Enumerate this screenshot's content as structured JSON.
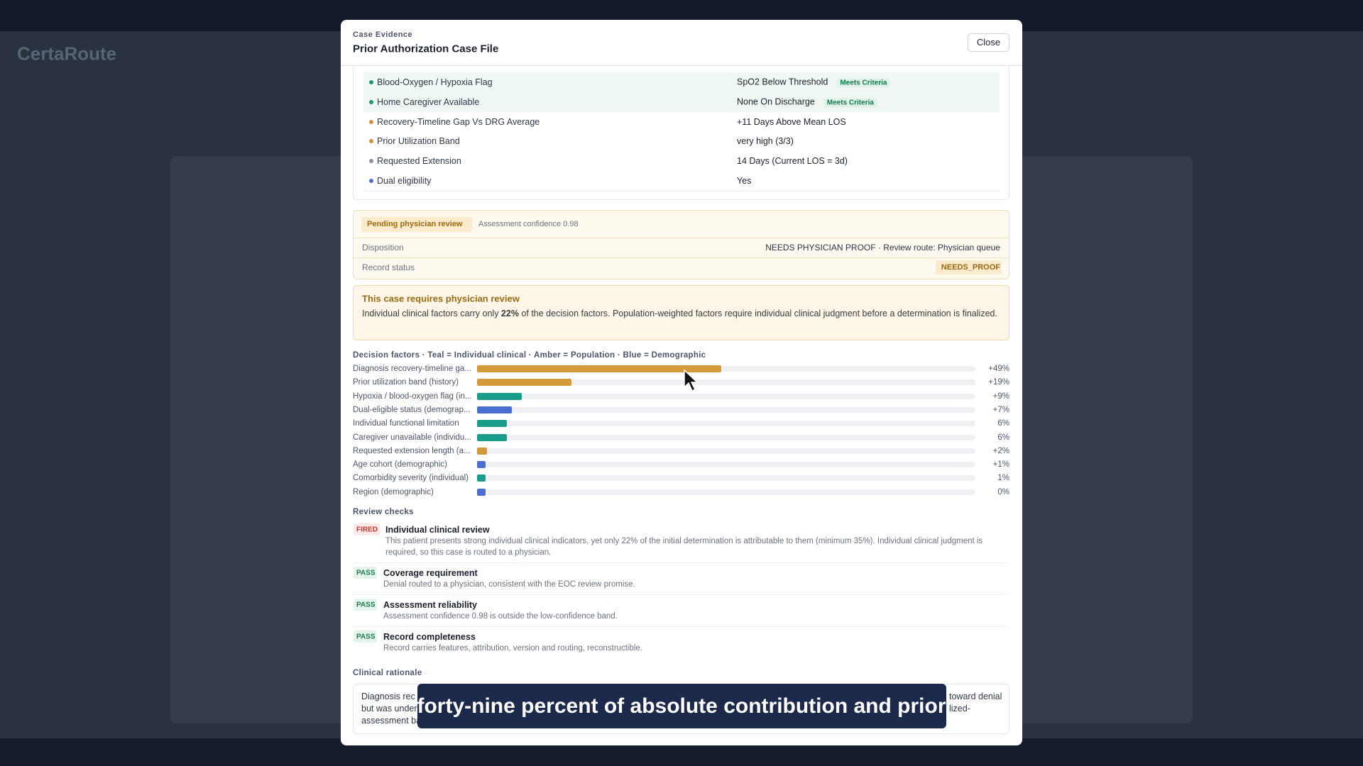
{
  "background": {
    "app_title": "CertaRoute"
  },
  "header": {
    "eyebrow": "Case Evidence",
    "title": "Prior Authorization Case File",
    "close": "Close"
  },
  "features": [
    {
      "name": "Blood-Oxygen / Hypoxia Flag",
      "value": "SpO2 Below Threshold",
      "badge": "Meets Criteria",
      "dot": "#1a9c6a"
    },
    {
      "name": "Home Caregiver Available",
      "value": "None On Discharge",
      "badge": "Meets Criteria",
      "dot": "#1a9c6a"
    },
    {
      "name": "Recovery-Timeline Gap Vs DRG Average",
      "value": "+11 Days Above Mean LOS",
      "dot": "#d4903a"
    },
    {
      "name": "Prior Utilization Band",
      "value": "very high (3/3)",
      "dot": "#d4903a"
    },
    {
      "name": "Requested Extension",
      "value": "14 Days (Current LOS = 3d)",
      "dot": "#8a93a3"
    },
    {
      "name": "Dual eligibility",
      "value": "Yes",
      "dot": "#4a6fd0"
    }
  ],
  "status": {
    "badge": "Pending physician review",
    "confidence": "Assessment confidence 0.98",
    "rows": [
      {
        "label": "Disposition",
        "value": "NEEDS PHYSICIAN PROOF · Review route: Physician queue"
      },
      {
        "label": "Record status",
        "value": "NEEDS_PROOF"
      }
    ]
  },
  "alert": {
    "title": "This case requires physician review",
    "text": [
      "Individual clinical factors carry only ",
      "22%",
      " of the decision factors. Population-weighted factors require individual clinical judgment before a determination is finalized."
    ]
  },
  "decision_factors": {
    "title": "Decision factors · Teal = Individual clinical · Amber = Population · Blue = Demographic",
    "categories": [
      "Diagnosis recovery-timeline ga...",
      "Prior utilization band (history)",
      "Hypoxia / blood-oxygen flag (in...",
      "Dual-eligible status (demograp...",
      "Individual functional limitation",
      "Caregiver unavailable (individu...",
      "Requested extension length (a...",
      "Age cohort (demographic)",
      "Comorbidity severity (individual)",
      "Region (demographic)"
    ],
    "values": [
      49,
      19,
      9,
      7,
      6,
      6,
      2,
      1,
      1,
      0
    ],
    "value_labels": [
      "+49%",
      "+19%",
      "+9%",
      "+7%",
      "6%",
      "6%",
      "+2%",
      "+1%",
      "1%",
      "0%"
    ],
    "colors": [
      "#d49a3a",
      "#d49a3a",
      "#1a9c8a",
      "#4a6fd0",
      "#1a9c8a",
      "#1a9c8a",
      "#d49a3a",
      "#4a6fd0",
      "#1a9c8a",
      "#4a6fd0"
    ],
    "xlim": [
      0,
      100
    ]
  },
  "checks": {
    "title": "Review checks",
    "items": [
      {
        "status": "FIRED",
        "title": "Individual clinical review",
        "text": [
          "This patient presents strong individual clinical indicators, yet only 22% of the initial determination is attributable to them (minimum 35%). Individual clinical judgment is",
          "required, so this case is routed to a physician."
        ]
      },
      {
        "status": "PASS",
        "title": "Coverage requirement",
        "text": [
          "Denial routed to a physician, consistent with the EOC review promise."
        ]
      },
      {
        "status": "PASS",
        "title": "Assessment reliability",
        "text": [
          "Assessment confidence 0.98 is outside the low-confidence band."
        ]
      },
      {
        "status": "PASS",
        "title": "Record completeness",
        "text": [
          "Record carries features, attribution, version and routing, reconstructible."
        ]
      }
    ]
  },
  "rationale": {
    "title": "Clinical rationale",
    "left": [
      "Diagnosis rec",
      "but was under",
      "assessment ba"
    ],
    "right": [
      "toward denial",
      "lized-"
    ]
  },
  "caption": "forty-nine percent of absolute contribution and prior"
}
